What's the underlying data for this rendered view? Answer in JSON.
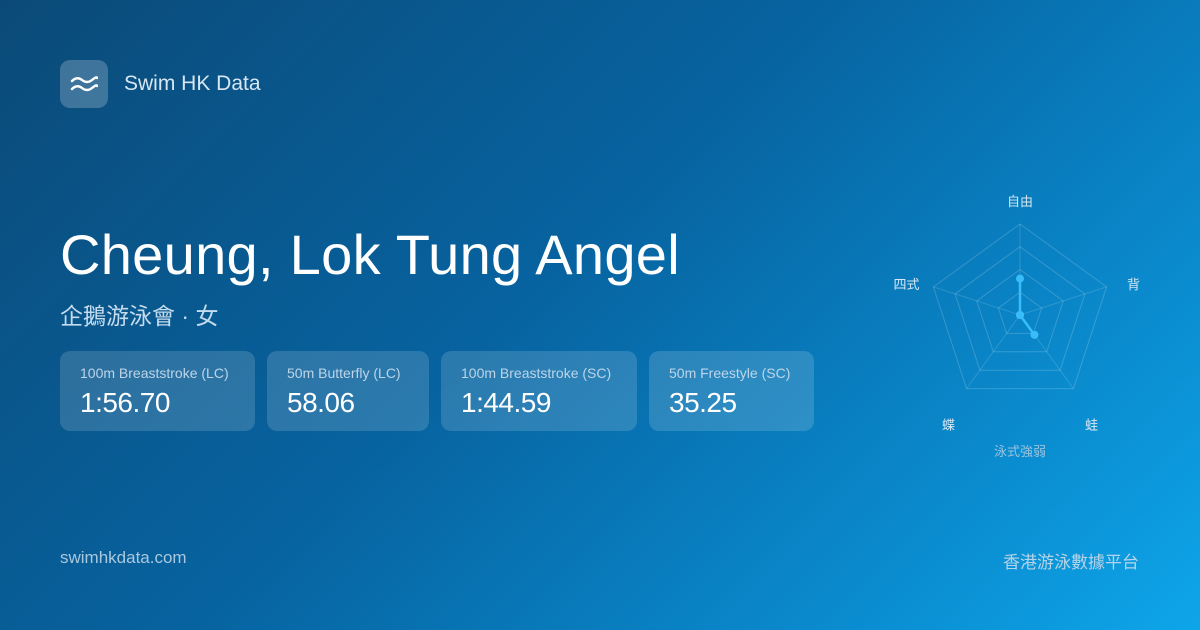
{
  "brand": {
    "name": "Swim HK Data",
    "icon": "waves-icon"
  },
  "swimmer": {
    "name": "Cheung, Lok Tung Angel",
    "subtitle": "企鵝游泳會 · 女"
  },
  "records": [
    {
      "event": "100m Breaststroke (LC)",
      "time": "1:56.70"
    },
    {
      "event": "50m Butterfly (LC)",
      "time": "58.06"
    },
    {
      "event": "100m Breaststroke (SC)",
      "time": "1:44.59"
    },
    {
      "event": "50m Freestyle (SC)",
      "time": "35.25"
    }
  ],
  "footer": {
    "site": "swimhkdata.com",
    "tagline": "香港游泳數據平台"
  },
  "chart_data": {
    "type": "radar",
    "title": "泳式強弱",
    "axes": [
      "自由",
      "背",
      "蛙",
      "蝶",
      "四式"
    ],
    "values": [
      0.4,
      0.0,
      0.27,
      0.0,
      0.0
    ],
    "range": [
      0,
      1
    ],
    "rings": 4,
    "color": "#38bdf8"
  }
}
